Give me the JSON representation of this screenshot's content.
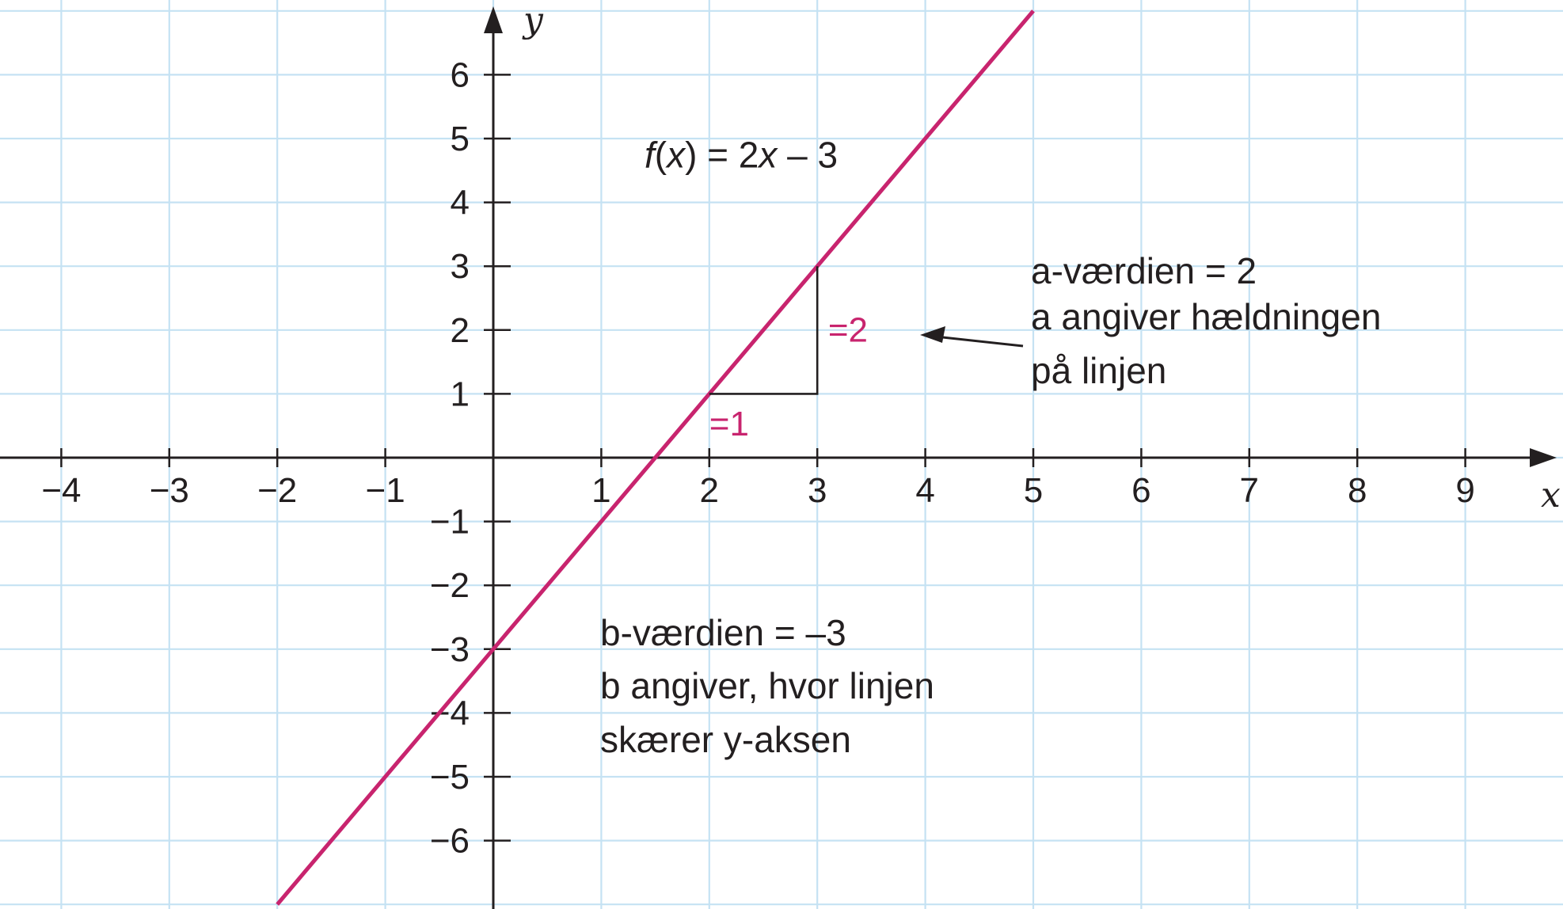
{
  "chart_data": {
    "type": "line",
    "title": "",
    "xlabel": "x",
    "ylabel": "y",
    "xlim": [
      -4.5,
      9.8
    ],
    "ylim": [
      -6.7,
      7.0
    ],
    "grid": true,
    "x_ticks": [
      -4,
      -3,
      -2,
      -1,
      1,
      2,
      3,
      4,
      5,
      6,
      7,
      8,
      9
    ],
    "x_tick_labels": [
      "−4",
      "−3",
      "−2",
      "−1",
      "1",
      "2",
      "3",
      "4",
      "5",
      "6",
      "7",
      "8",
      "9"
    ],
    "y_ticks": [
      6,
      5,
      4,
      3,
      2,
      1,
      -1,
      -2,
      -3,
      -4,
      -5,
      -6
    ],
    "y_tick_labels": [
      "6",
      "5",
      "4",
      "3",
      "2",
      "1",
      "−1",
      "−2",
      "−3",
      "−4",
      "−5",
      "−6"
    ],
    "series": [
      {
        "name": "f(x) = 2x − 3",
        "slope": 2,
        "intercept": -3,
        "x": [
          -2,
          5
        ],
        "y": [
          -7,
          7
        ],
        "color": "#c8246e"
      }
    ],
    "slope_triangle": {
      "x": [
        2,
        3
      ],
      "y": [
        1,
        3
      ],
      "run_label": "=1",
      "rise_label": "=2"
    }
  },
  "labels": {
    "function": {
      "f": "f",
      "open": "(",
      "x": "x",
      "close_eq": ") = 2",
      "x2": "x",
      "rest": " – 3"
    },
    "a_note": [
      "a-værdien = 2",
      "a angiver hældningen",
      "på linjen"
    ],
    "b_note": [
      "b-værdien = –3",
      "b angiver, hvor linjen",
      "skærer y-aksen"
    ]
  },
  "colors": {
    "line": "#c8246e",
    "grid": "#c5e2f3",
    "axis": "#231f20"
  }
}
